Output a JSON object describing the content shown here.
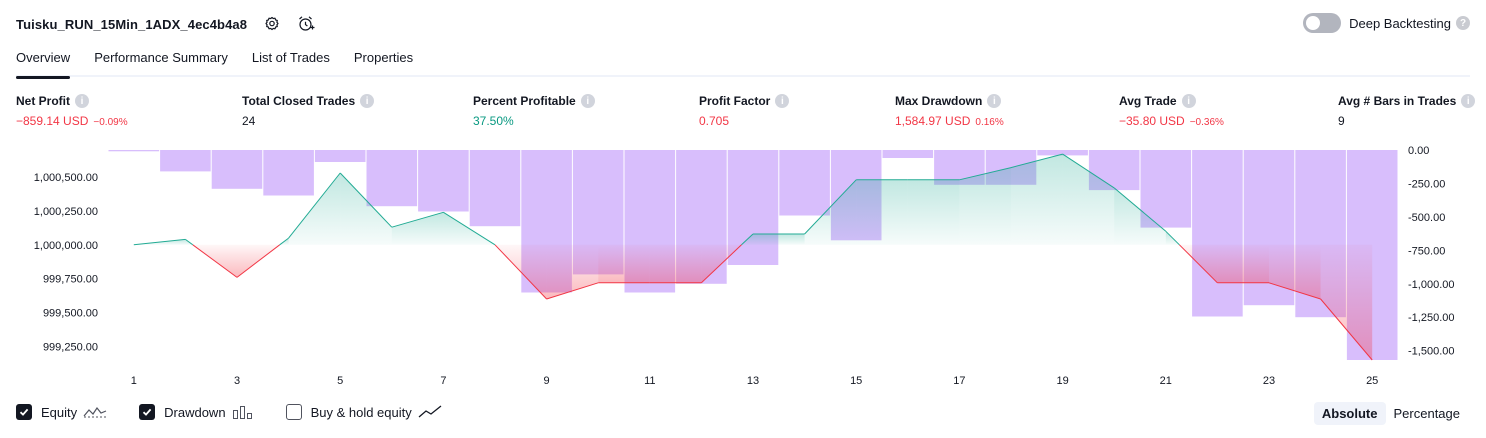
{
  "header": {
    "strategy_name": "Tuisku_RUN_15Min_1ADX_4ec4b4a8",
    "icons": [
      "gear-icon",
      "alarm-clock-plus-icon"
    ],
    "deep_backtesting_label": "Deep Backtesting",
    "deep_backtesting_enabled": false
  },
  "tabs": [
    {
      "label": "Overview",
      "active": true
    },
    {
      "label": "Performance Summary",
      "active": false
    },
    {
      "label": "List of Trades",
      "active": false
    },
    {
      "label": "Properties",
      "active": false
    }
  ],
  "metrics": [
    {
      "label": "Net Profit",
      "value": "−859.14 USD",
      "pct": "−0.09%",
      "color": "red"
    },
    {
      "label": "Total Closed Trades",
      "value": "24",
      "pct": "",
      "color": "default"
    },
    {
      "label": "Percent Profitable",
      "value": "37.50%",
      "pct": "",
      "color": "green"
    },
    {
      "label": "Profit Factor",
      "value": "0.705",
      "pct": "",
      "color": "red"
    },
    {
      "label": "Max Drawdown",
      "value": "1,584.97 USD",
      "pct": "0.16%",
      "color": "red"
    },
    {
      "label": "Avg Trade",
      "value": "−35.80 USD",
      "pct": "−0.36%",
      "color": "red"
    },
    {
      "label": "Avg # Bars in Trades",
      "value": "9",
      "pct": "",
      "color": "default"
    }
  ],
  "colors": {
    "equity_up": "#22ab94",
    "equity_down": "#f23645",
    "drawdown_bar": "#d1b3fb",
    "positive": "#089981",
    "negative": "#f23645"
  },
  "chart_data": {
    "type": "bar",
    "x": [
      1,
      2,
      3,
      4,
      5,
      6,
      7,
      8,
      9,
      10,
      11,
      12,
      13,
      14,
      15,
      16,
      17,
      18,
      19,
      20,
      21,
      22,
      23,
      24,
      25
    ],
    "x_tick_labels": [
      "1",
      "3",
      "5",
      "7",
      "9",
      "11",
      "13",
      "15",
      "17",
      "19",
      "21",
      "23",
      "25"
    ],
    "series": [
      {
        "values": [
          1000000,
          1000040,
          999760,
          1000050,
          1000530,
          1000130,
          1000240,
          1000000,
          999600,
          999720,
          999720,
          999720,
          1000080,
          1000080,
          1000480,
          1000480,
          1000480,
          1000570,
          1000670,
          1000420,
          1000100,
          999720,
          999720,
          999600,
          999150
        ]
      },
      {
        "values": [
          -10,
          -160,
          -290,
          -340,
          -90,
          -420,
          -460,
          -570,
          -1065,
          -930,
          -1065,
          -1000,
          -860,
          -490,
          -675,
          -60,
          -260,
          -260,
          -40,
          -300,
          -580,
          -1245,
          -1160,
          -1250,
          -1570
        ]
      }
    ],
    "y_left": {
      "ticks": [
        "1,000,500.00",
        "1,000,250.00",
        "1,000,000.00",
        "999,750.00",
        "999,500.00",
        "999,250.00"
      ],
      "range": [
        999150,
        1000700
      ]
    },
    "y_right": {
      "ticks": [
        "0.00",
        "-250.00",
        "-500.00",
        "-750.00",
        "-1,000.00",
        "-1,250.00",
        "-1,500.00"
      ],
      "range": [
        -1570,
        0
      ]
    },
    "baseline": 1000000
  },
  "legend": [
    {
      "label": "Equity",
      "checked": true,
      "glyph": "equity-line-icon"
    },
    {
      "label": "Drawdown",
      "checked": true,
      "glyph": "drawdown-bars-icon"
    },
    {
      "label": "Buy & hold equity",
      "checked": false,
      "glyph": "buy-hold-line-icon"
    }
  ],
  "scale_mode": {
    "options": [
      "Absolute",
      "Percentage"
    ],
    "selected": "Absolute"
  }
}
